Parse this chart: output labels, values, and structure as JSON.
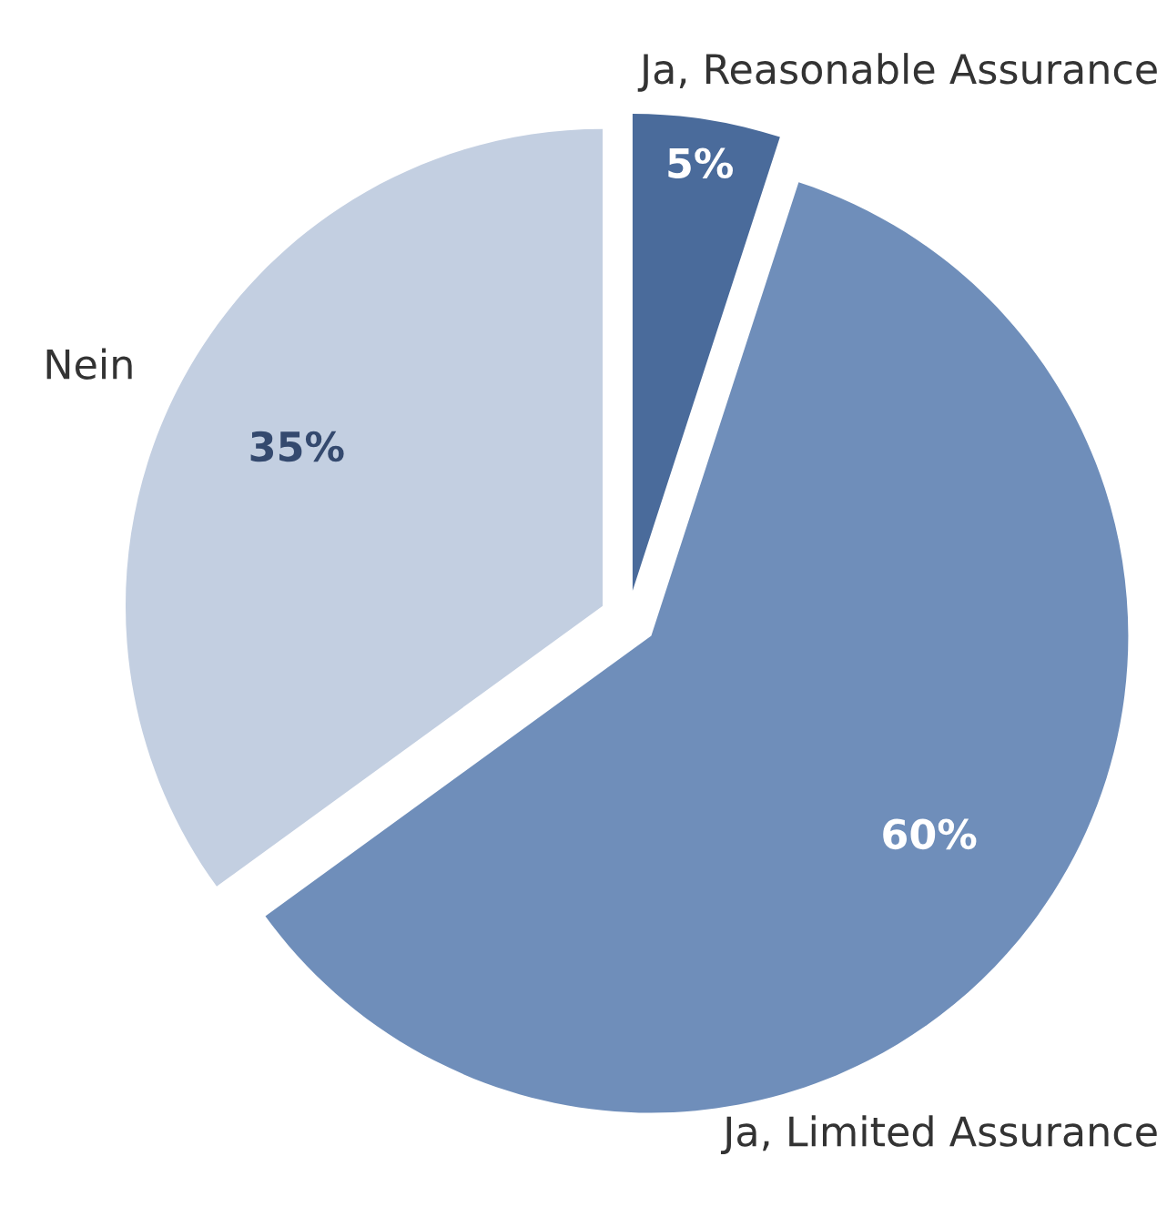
{
  "chart_data": {
    "type": "pie",
    "categories": [
      "Ja, Reasonable Assurance",
      "Ja, Limited Assurance",
      "Nein"
    ],
    "values": [
      5,
      60,
      35
    ],
    "colors": [
      "#4a6b9b",
      "#6f8eba",
      "#c3cfe1"
    ],
    "value_labels": [
      "5%",
      "60%",
      "35%"
    ],
    "legend": false
  }
}
